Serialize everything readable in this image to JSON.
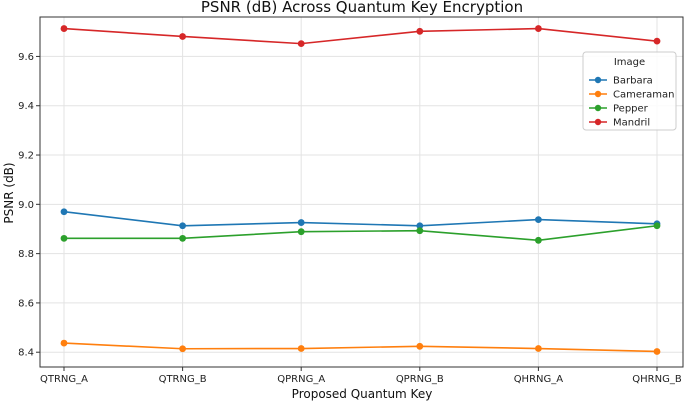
{
  "chart_data": {
    "type": "line",
    "title": "PSNR (dB) Across Quantum Key Encryption",
    "xlabel": "Proposed Quantum Key",
    "ylabel": "PSNR (dB)",
    "categories": [
      "QTRNG_A",
      "QTRNG_B",
      "QPRNG_A",
      "QPRNG_B",
      "QHRNG_A",
      "QHRNG_B"
    ],
    "ylim": [
      8.34,
      9.76
    ],
    "yticks": [
      8.4,
      8.6,
      8.8,
      9.0,
      9.2,
      9.4,
      9.6
    ],
    "grid": true,
    "legend": {
      "title": "Image",
      "placement": "right"
    },
    "series": [
      {
        "name": "Barbara",
        "color": "#1f77b4",
        "values": [
          8.97,
          8.913,
          8.926,
          8.913,
          8.938,
          8.921
        ]
      },
      {
        "name": "Cameraman",
        "color": "#ff7f0e",
        "values": [
          8.437,
          8.414,
          8.415,
          8.424,
          8.415,
          8.403
        ]
      },
      {
        "name": "Pepper",
        "color": "#2ca02c",
        "values": [
          8.862,
          8.862,
          8.889,
          8.893,
          8.854,
          8.913
        ]
      },
      {
        "name": "Mandril",
        "color": "#d62728",
        "values": [
          9.713,
          9.681,
          9.652,
          9.702,
          9.713,
          9.662
        ]
      }
    ]
  }
}
